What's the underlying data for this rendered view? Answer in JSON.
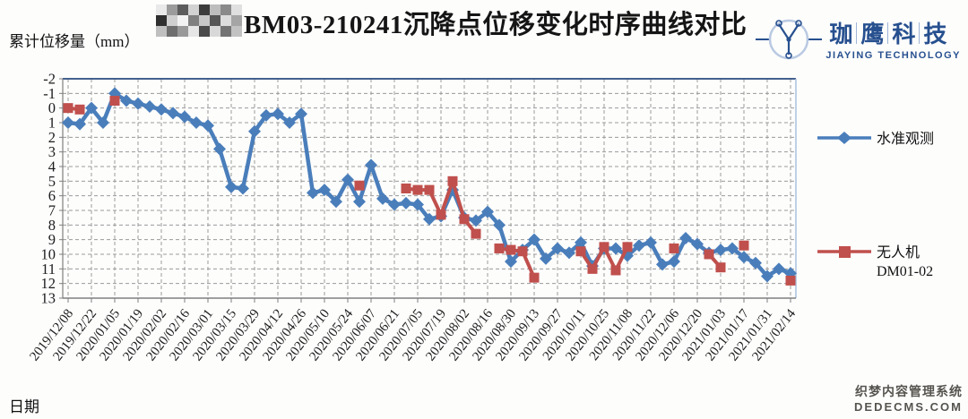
{
  "title": {
    "prefix_redacted": true,
    "text": "BM03-210241沉降点位移变化时序曲线对比"
  },
  "logo": {
    "chars": [
      "珈",
      "鹰",
      "科",
      "技"
    ],
    "subtitle": "JIAYING TECHNOLOGY",
    "color": "#27508f"
  },
  "watermark": {
    "line1": "织梦内容管理系统",
    "line2": "DEDECMS.COM"
  },
  "chart_data": {
    "type": "line",
    "title": "BM03-210241沉降点位移变化时序曲线对比",
    "xlabel": "日期",
    "ylabel": "累计位移量（mm）",
    "ylim": [
      -2,
      13
    ],
    "y_inverted": true,
    "y_ticks": [
      -2,
      -1,
      0,
      1,
      2,
      3,
      4,
      5,
      6,
      7,
      8,
      9,
      10,
      11,
      12,
      13
    ],
    "grid": "dashed",
    "points_per_tick": 2,
    "x_tick_labels": [
      "2019/12/08",
      "2019/12/22",
      "2020/01/05",
      "2020/01/19",
      "2020/02/02",
      "2020/02/16",
      "2020/03/01",
      "2020/03/15",
      "2020/03/29",
      "2020/04/12",
      "2020/04/26",
      "2020/05/10",
      "2020/05/24",
      "2020/06/07",
      "2020/06/21",
      "2020/07/05",
      "2020/07/19",
      "2020/08/02",
      "2020/08/16",
      "2020/08/30",
      "2020/09/13",
      "2020/09/27",
      "2020/10/11",
      "2020/10/25",
      "2020/11/08",
      "2020/11/22",
      "2020/12/06",
      "2020/12/20",
      "2021/01/03",
      "2021/01/17",
      "2021/01/31",
      "2021/02/14"
    ],
    "series": [
      {
        "name": "水准观测",
        "color": "#4A7EBB",
        "marker": "diamond",
        "values": [
          1.0,
          1.1,
          0.0,
          1.0,
          -1.0,
          -0.5,
          -0.3,
          -0.1,
          0.1,
          0.35,
          0.6,
          1.0,
          1.2,
          2.8,
          5.4,
          5.5,
          1.6,
          0.5,
          0.4,
          1.0,
          0.4,
          5.8,
          5.6,
          6.4,
          4.9,
          6.4,
          3.9,
          6.2,
          6.6,
          6.5,
          6.6,
          7.6,
          7.4,
          5.6,
          7.5,
          7.7,
          7.1,
          8.0,
          10.5,
          9.7,
          9.0,
          10.3,
          9.6,
          9.9,
          9.2,
          10.8,
          9.6,
          9.6,
          10.1,
          9.4,
          9.2,
          10.7,
          10.5,
          8.9,
          9.3,
          9.9,
          9.7,
          9.6,
          10.2,
          10.6,
          11.5,
          11.0,
          11.3
        ]
      },
      {
        "name": "无人机 DM01-02",
        "legend_line1": "无人机",
        "legend_line2": "DM01-02",
        "color": "#C0504D",
        "marker": "square",
        "values": [
          0.0,
          0.1,
          null,
          null,
          -0.5,
          null,
          null,
          null,
          null,
          null,
          null,
          null,
          null,
          null,
          null,
          null,
          null,
          null,
          null,
          null,
          null,
          null,
          null,
          null,
          null,
          5.3,
          null,
          null,
          null,
          5.5,
          5.6,
          5.6,
          7.3,
          5.0,
          7.6,
          8.6,
          null,
          9.6,
          9.7,
          9.8,
          11.6,
          null,
          null,
          null,
          9.8,
          11.0,
          9.5,
          11.1,
          9.5,
          null,
          null,
          null,
          9.6,
          null,
          null,
          10.0,
          10.9,
          null,
          9.4,
          null,
          null,
          null,
          11.8
        ]
      }
    ]
  }
}
